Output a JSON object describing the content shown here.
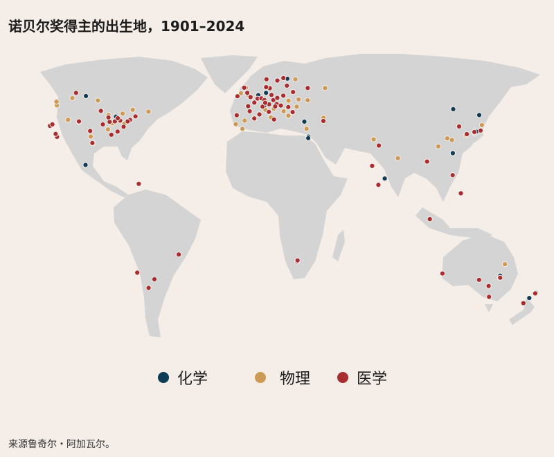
{
  "title": "诺贝尔奖得主的出生地，1901–2024",
  "source": "来源鲁奇尔・阿加瓦尔。",
  "colors": {
    "background": "#f5ede8",
    "land": "#d4d4d4",
    "chemistry": "#0f3c55",
    "physics": "#cc9a55",
    "medicine": "#a82d30"
  },
  "legend": [
    {
      "key": "chemistry",
      "label": "化学"
    },
    {
      "key": "physics",
      "label": "物理"
    },
    {
      "key": "medicine",
      "label": "医学"
    }
  ],
  "points": {
    "chemistry": [
      [
        13.4,
        52.5
      ],
      [
        11.6,
        48.1
      ],
      [
        16.4,
        48.2
      ],
      [
        2.3,
        48.9
      ],
      [
        -0.1,
        51.5
      ],
      [
        8.5,
        47.4
      ],
      [
        18,
        59.3
      ],
      [
        21,
        52.2
      ],
      [
        19,
        47.5
      ],
      [
        35,
        32.8
      ],
      [
        34.8,
        32.1
      ],
      [
        32.8,
        39.9
      ],
      [
        37.6,
        55.8
      ],
      [
        -74,
        40.7
      ],
      [
        -87.6,
        41.9
      ],
      [
        -80,
        40.4
      ],
      [
        -75,
        40
      ],
      [
        -83,
        42.3
      ],
      [
        -118,
        34
      ],
      [
        -95,
        29.7
      ],
      [
        -99,
        19.4
      ],
      [
        -71,
        42.4
      ],
      [
        -93,
        45
      ],
      [
        139.7,
        35.7
      ],
      [
        135.8,
        35
      ],
      [
        137,
        35.2
      ],
      [
        141.3,
        43
      ],
      [
        126.6,
        45.8
      ],
      [
        121.5,
        25
      ],
      [
        80.2,
        13
      ],
      [
        145,
        -37.8
      ],
      [
        172.6,
        -43.5
      ],
      [
        175,
        -41
      ],
      [
        151,
        -32.9
      ],
      [
        10,
        53.5
      ],
      [
        4.9,
        52.4
      ],
      [
        24.9,
        60.2
      ],
      [
        -106,
        52
      ]
    ],
    "physics": [
      [
        -122,
        47.6
      ],
      [
        -123,
        49.3
      ],
      [
        -114,
        51
      ],
      [
        -97,
        49.9
      ],
      [
        -79.4,
        43.7
      ],
      [
        -73.6,
        45.5
      ],
      [
        -63.6,
        44.6
      ],
      [
        -90,
        38.6
      ],
      [
        -84.5,
        39.1
      ],
      [
        -104.9,
        39.7
      ],
      [
        -112,
        40.8
      ],
      [
        -96.8,
        32.8
      ],
      [
        -86.8,
        36.2
      ],
      [
        -76.6,
        39.3
      ],
      [
        -77,
        38.9
      ],
      [
        -122.4,
        37.8
      ],
      [
        -118.2,
        34.1
      ],
      [
        -87.9,
        43
      ],
      [
        2.3,
        48.9
      ],
      [
        -1.5,
        52.4
      ],
      [
        -3.2,
        55.9
      ],
      [
        -6.3,
        53.3
      ],
      [
        12.5,
        41.9
      ],
      [
        9.2,
        45.5
      ],
      [
        -3.7,
        40.4
      ],
      [
        -9.1,
        38.7
      ],
      [
        14.5,
        46
      ],
      [
        30.5,
        50.4
      ],
      [
        36.2,
        50
      ],
      [
        49.1,
        55.8
      ],
      [
        30.3,
        59.9
      ],
      [
        24,
        49.8
      ],
      [
        44.8,
        41.7
      ],
      [
        28.9,
        47
      ],
      [
        20.5,
        44.8
      ],
      [
        23.3,
        42.7
      ],
      [
        74.3,
        31.5
      ],
      [
        88.4,
        22.6
      ],
      [
        80.3,
        13.1
      ],
      [
        121.5,
        31.2
      ],
      [
        113,
        28.2
      ],
      [
        118.8,
        32
      ],
      [
        135.5,
        34.7
      ],
      [
        130.4,
        33.6
      ],
      [
        141,
        38.3
      ],
      [
        153,
        -27.5
      ],
      [
        151,
        -33.9
      ],
      [
        -5,
        36.5
      ],
      [
        34,
        36.5
      ]
    ],
    "medicine": [
      [
        13.4,
        52.5
      ],
      [
        11.6,
        48.1
      ],
      [
        16.4,
        48.2
      ],
      [
        2.3,
        48.9
      ],
      [
        -0.1,
        51.5
      ],
      [
        -2.2,
        53.5
      ],
      [
        -4.3,
        55.9
      ],
      [
        -8.5,
        51.9
      ],
      [
        7.5,
        47
      ],
      [
        12.6,
        55.7
      ],
      [
        10.7,
        59.9
      ],
      [
        18,
        59.3
      ],
      [
        22.3,
        60.5
      ],
      [
        21,
        52.2
      ],
      [
        19,
        47.5
      ],
      [
        14.4,
        50.1
      ],
      [
        26.1,
        44.4
      ],
      [
        5.4,
        43.3
      ],
      [
        -1.6,
        47.2
      ],
      [
        4.4,
        50.8
      ],
      [
        6.9,
        50.9
      ],
      [
        8.7,
        50.1
      ],
      [
        9.2,
        48.8
      ],
      [
        15.4,
        47.1
      ],
      [
        17,
        51.1
      ],
      [
        23.6,
        46.8
      ],
      [
        24.1,
        56.9
      ],
      [
        27.6,
        53.9
      ],
      [
        10.2,
        56.2
      ],
      [
        -0.6,
        44.8
      ],
      [
        -8.6,
        42.9
      ],
      [
        2.2,
        41.4
      ],
      [
        14.3,
        40.9
      ],
      [
        11.3,
        44.5
      ],
      [
        37.6,
        55.8
      ],
      [
        44.5,
        40.2
      ],
      [
        -74,
        40.7
      ],
      [
        -71.1,
        42.4
      ],
      [
        -75.2,
        40
      ],
      [
        -79.9,
        40.4
      ],
      [
        -83,
        40
      ],
      [
        -84.4,
        33.7
      ],
      [
        -86.2,
        39.8
      ],
      [
        -87.6,
        41.9
      ],
      [
        -90.2,
        38.6
      ],
      [
        -93.3,
        44.98
      ],
      [
        -95.4,
        29.8
      ],
      [
        -97.5,
        35.5
      ],
      [
        -77.4,
        37.5
      ],
      [
        -80.8,
        35.2
      ],
      [
        -81.7,
        41.5
      ],
      [
        -122.3,
        37.9
      ],
      [
        -121,
        38.6
      ],
      [
        -117.2,
        32.7
      ],
      [
        -118.2,
        34.1
      ],
      [
        -113.5,
        53.5
      ],
      [
        -105,
        40
      ],
      [
        -66.9,
        10.5
      ],
      [
        -43.2,
        -22.9
      ],
      [
        -58.4,
        -34.6
      ],
      [
        -62.3,
        -38.7
      ],
      [
        -68.5,
        -31.5
      ],
      [
        28,
        -26.2
      ],
      [
        28.2,
        -25.7
      ],
      [
        115.9,
        -31.9
      ],
      [
        147.3,
        -42.9
      ],
      [
        145,
        -37.8
      ],
      [
        138.6,
        -34.9
      ],
      [
        151.2,
        -33.9
      ],
      [
        174.8,
        -41.3
      ],
      [
        170.5,
        -45.9
      ],
      [
        139.7,
        35.7
      ],
      [
        135.8,
        35
      ],
      [
        131,
        34
      ],
      [
        127,
        37.6
      ],
      [
        77.2,
        28.6
      ],
      [
        72.8,
        19
      ],
      [
        76.3,
        10
      ],
      [
        105.8,
        21
      ],
      [
        107,
        -6.2
      ],
      [
        125.5,
        6
      ],
      [
        120.9,
        14.6
      ]
    ]
  }
}
